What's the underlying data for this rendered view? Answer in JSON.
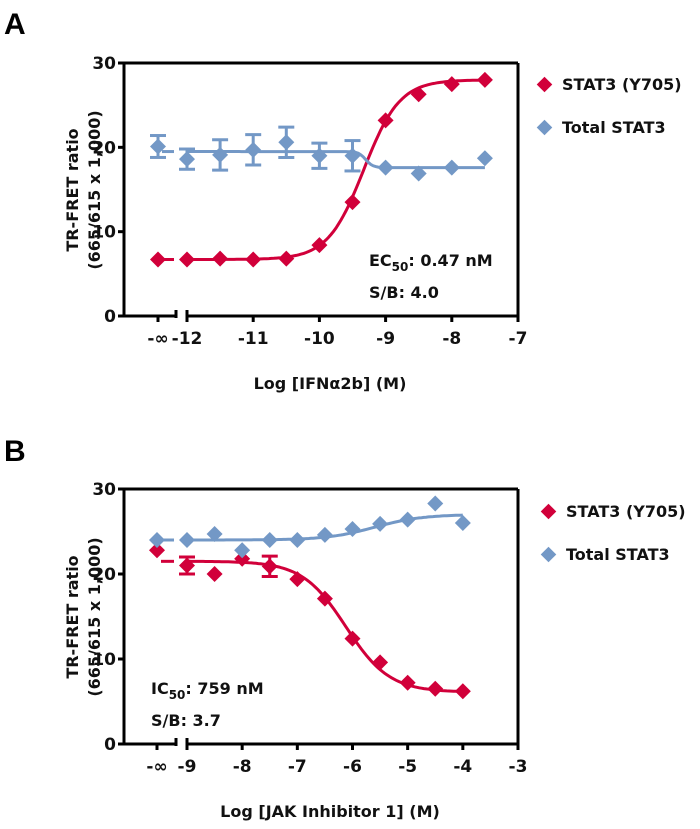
{
  "colors": {
    "stat3_y705": "#d1003a",
    "total_stat3": "#7398c6",
    "axis": "#000000"
  },
  "chart_data": [
    {
      "panel_label": "A",
      "type": "scatter",
      "title": "",
      "xlabel": "Log [IFNα2b] (M)",
      "ylabel": "TR-FRET ratio",
      "ylabel2": "(665/615 x 1,000)",
      "xlim": [
        -12,
        -7
      ],
      "ylim": [
        0,
        30
      ],
      "x_break_label": "-∞",
      "x_ticks": [
        "-12",
        "-11",
        "-10",
        "-9",
        "-8",
        "-7"
      ],
      "x_tick_values": [
        -12,
        -11,
        -10,
        -9,
        -8,
        -7
      ],
      "y_ticks": [
        "0",
        "10",
        "20",
        "30"
      ],
      "y_tick_values": [
        0,
        10,
        20,
        30
      ],
      "legend": [
        "STAT3 (Y705)",
        "Total STAT3"
      ],
      "legend_position": "right",
      "annotation": {
        "metric_prefix": "EC",
        "metric_sub": "50",
        "metric_value": ": 0.47 nM",
        "sb": "S/B: 4.0"
      },
      "series": [
        {
          "name": "STAT3 (Y705)",
          "color_key": "stat3_y705",
          "fit": "sigmoid_increasing",
          "fit_params": {
            "bottom": 6.7,
            "top": 28.0,
            "log_ec50": -9.33,
            "hill": 1.6
          },
          "neg_inf_y": 6.7,
          "x": [
            -12,
            -11.5,
            -11,
            -10.5,
            -10,
            -9.5,
            -9,
            -8.5,
            -8,
            -7.5
          ],
          "y": [
            6.7,
            6.8,
            6.7,
            6.8,
            8.4,
            13.5,
            23.2,
            26.3,
            27.5,
            28.0
          ],
          "err": [
            0,
            0,
            0,
            0,
            0,
            0,
            0,
            0,
            0,
            0
          ]
        },
        {
          "name": "Total STAT3",
          "color_key": "total_stat3",
          "fit": "step_decrease",
          "fit_params": {
            "top": 19.5,
            "bottom": 17.6,
            "log_mid": -9.3
          },
          "neg_inf_y": 20.1,
          "neg_inf_err": 1.3,
          "x": [
            -12,
            -11.5,
            -11,
            -10.5,
            -10,
            -9.5,
            -9,
            -8.5,
            -8,
            -7.5
          ],
          "y": [
            18.6,
            19.1,
            19.7,
            20.6,
            19.0,
            19.0,
            17.6,
            16.9,
            17.6,
            18.7
          ],
          "err": [
            1.2,
            1.8,
            1.8,
            1.8,
            1.5,
            1.8,
            0,
            0,
            0,
            0
          ]
        }
      ]
    },
    {
      "panel_label": "B",
      "type": "scatter",
      "title": "",
      "xlabel": "Log [JAK Inhibitor 1] (M)",
      "ylabel": "TR-FRET ratio",
      "ylabel2": "(665/615 x 1,000)",
      "xlim": [
        -9,
        -3
      ],
      "ylim": [
        0,
        30
      ],
      "x_break_label": "-∞",
      "x_ticks": [
        "-9",
        "-8",
        "-7",
        "-6",
        "-5",
        "-4",
        "-3"
      ],
      "x_tick_values": [
        -9,
        -8,
        -7,
        -6,
        -5,
        -4,
        -3
      ],
      "y_ticks": [
        "0",
        "10",
        "20",
        "30"
      ],
      "y_tick_values": [
        0,
        10,
        20,
        30
      ],
      "legend": [
        "STAT3 (Y705)",
        "Total STAT3"
      ],
      "legend_position": "right",
      "annotation": {
        "metric_prefix": "IC",
        "metric_sub": "50",
        "metric_value": ": 759 nM",
        "sb": "S/B: 3.7"
      },
      "series": [
        {
          "name": "STAT3 (Y705)",
          "color_key": "stat3_y705",
          "fit": "sigmoid_decreasing",
          "fit_params": {
            "top": 21.5,
            "bottom": 6.1,
            "log_ic50": -6.12,
            "hill": 1.1
          },
          "neg_inf_y": 22.8,
          "x": [
            -9,
            -8.5,
            -8,
            -7.5,
            -7,
            -6.5,
            -6,
            -5.5,
            -5,
            -4.5,
            -4
          ],
          "y": [
            21.0,
            20.0,
            21.8,
            20.9,
            19.4,
            17.1,
            12.4,
            9.6,
            7.2,
            6.5,
            6.2
          ],
          "err": [
            1.0,
            0,
            0,
            1.2,
            0,
            0,
            0,
            0,
            0,
            0,
            0
          ]
        },
        {
          "name": "Total STAT3",
          "color_key": "total_stat3",
          "fit": "sigmoid_increasing",
          "fit_params": {
            "bottom": 24.0,
            "top": 27.0,
            "log_ec50": -5.6,
            "hill": 1.0
          },
          "neg_inf_y": 24.0,
          "x": [
            -9,
            -8.5,
            -8,
            -7.5,
            -7,
            -6.5,
            -6,
            -5.5,
            -5,
            -4.5,
            -4
          ],
          "y": [
            24.0,
            24.7,
            22.8,
            24.0,
            24.0,
            24.6,
            25.3,
            25.9,
            26.4,
            28.3,
            26.0
          ],
          "err": [
            0,
            0,
            0,
            0,
            0,
            0,
            0,
            0,
            0,
            0,
            0
          ]
        }
      ]
    }
  ]
}
